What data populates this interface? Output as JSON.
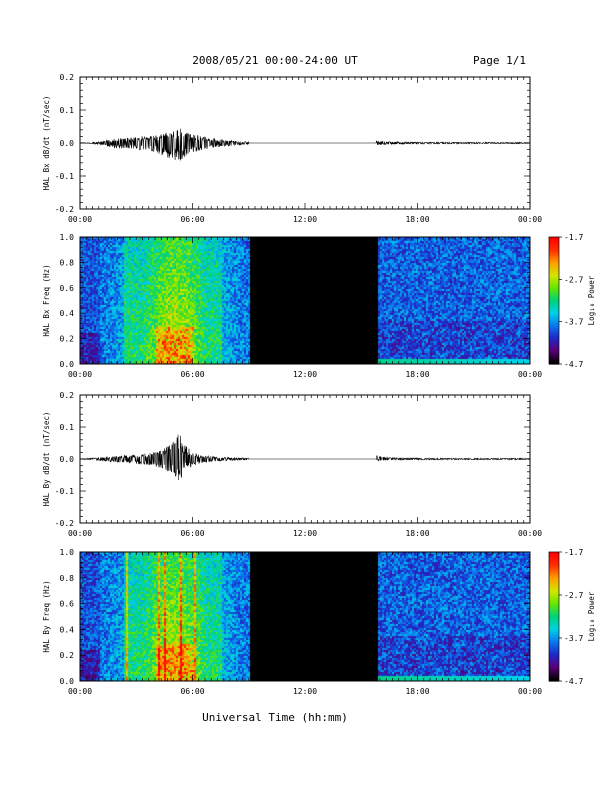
{
  "header": {
    "title": "2008/05/21  00:00-24:00 UT",
    "page": "Page 1/1"
  },
  "footer": {
    "xlabel": "Universal Time (hh:mm)"
  },
  "colors": {
    "spectrogram_scale": [
      "#000000",
      "#5a0078",
      "#1e28c8",
      "#0a78f0",
      "#00d2e6",
      "#00d278",
      "#64e600",
      "#d2e600",
      "#ffa000",
      "#ff3000",
      "#ff0000"
    ],
    "data_gap": "#000000",
    "trace": "#000000"
  },
  "chart_data": [
    {
      "type": "line",
      "panel": "bx-trace",
      "ylabel": "HAL Bx dB/dt (nT/sec)",
      "ylim": [
        -0.2,
        0.2
      ],
      "yticks": [
        "0.2",
        "0.1",
        "0.0",
        "-0.1",
        "-0.2"
      ],
      "ytick_values": [
        0.2,
        0.1,
        0.0,
        -0.1,
        -0.2
      ],
      "xlim_hours": [
        0,
        24
      ],
      "xticks": [
        "00:00",
        "06:00",
        "12:00",
        "18:00",
        "00:00"
      ],
      "xtick_hours": [
        0,
        6,
        12,
        18,
        24
      ],
      "data_gap_hours": [
        9.0,
        15.8
      ],
      "envelope": {
        "hours": [
          0,
          0.5,
          1.0,
          1.5,
          2.0,
          2.5,
          3.0,
          3.5,
          4.0,
          4.5,
          5.0,
          5.3,
          5.6,
          6.0,
          6.5,
          7.0,
          7.5,
          8.0,
          8.5,
          9.0,
          15.8,
          16.5,
          17.5,
          18.5,
          19.5,
          20.5,
          21.5,
          22.5,
          23.5,
          24.0
        ],
        "max": [
          0.001,
          0.001,
          0.004,
          0.01,
          0.014,
          0.016,
          0.018,
          0.022,
          0.025,
          0.03,
          0.042,
          0.048,
          0.035,
          0.026,
          0.02,
          0.015,
          0.011,
          0.008,
          0.005,
          0.004,
          0.007,
          0.004,
          0.003,
          0.003,
          0.002,
          0.002,
          0.002,
          0.002,
          0.002,
          0.001
        ],
        "min": [
          -0.001,
          -0.001,
          -0.005,
          -0.012,
          -0.016,
          -0.018,
          -0.02,
          -0.024,
          -0.028,
          -0.04,
          -0.055,
          -0.07,
          -0.04,
          -0.028,
          -0.022,
          -0.016,
          -0.012,
          -0.009,
          -0.006,
          -0.004,
          -0.006,
          -0.004,
          -0.003,
          -0.003,
          -0.002,
          -0.002,
          -0.002,
          -0.002,
          -0.002,
          -0.001
        ]
      }
    },
    {
      "type": "heatmap",
      "panel": "bx-spectrogram",
      "ylabel": "HAL Bx Freq (Hz)",
      "ylim": [
        0.0,
        1.0
      ],
      "yticks": [
        "1.0",
        "0.8",
        "0.6",
        "0.4",
        "0.2",
        "0.0"
      ],
      "ytick_values": [
        1.0,
        0.8,
        0.6,
        0.4,
        0.2,
        0.0
      ],
      "xlim_hours": [
        0,
        24
      ],
      "xticks": [
        "00:00",
        "06:00",
        "12:00",
        "18:00",
        "00:00"
      ],
      "xtick_hours": [
        0,
        6,
        12,
        18,
        24
      ],
      "data_gap_hours": [
        9.0,
        15.8
      ],
      "colorbar_label": "Log₁₀ Power",
      "colorbar_range": [
        -4.7,
        -1.7
      ],
      "colorbar_ticks": [
        "-1.7",
        "-2.7",
        "-3.7",
        "-4.7"
      ],
      "colorbar_tick_values": [
        -1.7,
        -2.7,
        -3.7,
        -4.7
      ],
      "activity_peak_hours": 5.0
    },
    {
      "type": "line",
      "panel": "by-trace",
      "ylabel": "HAL By dB/dt (nT/sec)",
      "ylim": [
        -0.2,
        0.2
      ],
      "yticks": [
        "0.2",
        "0.1",
        "0.0",
        "-0.1",
        "-0.2"
      ],
      "ytick_values": [
        0.2,
        0.1,
        0.0,
        -0.1,
        -0.2
      ],
      "xlim_hours": [
        0,
        24
      ],
      "xticks": [
        "00:00",
        "06:00",
        "12:00",
        "18:00",
        "00:00"
      ],
      "xtick_hours": [
        0,
        6,
        12,
        18,
        24
      ],
      "data_gap_hours": [
        9.0,
        15.8
      ],
      "envelope": {
        "hours": [
          0,
          0.5,
          1.0,
          1.5,
          2.0,
          2.5,
          3.0,
          3.5,
          4.0,
          4.5,
          5.0,
          5.3,
          5.6,
          6.0,
          6.5,
          7.0,
          7.5,
          8.0,
          8.5,
          9.0,
          15.8,
          16.5,
          17.5,
          18.5,
          19.5,
          20.5,
          21.5,
          22.5,
          23.5,
          24.0
        ],
        "max": [
          0.001,
          0.002,
          0.005,
          0.008,
          0.01,
          0.012,
          0.014,
          0.018,
          0.022,
          0.035,
          0.06,
          0.09,
          0.045,
          0.022,
          0.012,
          0.009,
          0.007,
          0.005,
          0.004,
          0.003,
          0.012,
          0.004,
          0.003,
          0.003,
          0.002,
          0.002,
          0.002,
          0.002,
          0.002,
          0.001
        ],
        "min": [
          -0.001,
          -0.002,
          -0.005,
          -0.009,
          -0.011,
          -0.013,
          -0.015,
          -0.019,
          -0.024,
          -0.038,
          -0.055,
          -0.07,
          -0.04,
          -0.022,
          -0.013,
          -0.009,
          -0.007,
          -0.005,
          -0.004,
          -0.003,
          -0.006,
          -0.004,
          -0.003,
          -0.003,
          -0.002,
          -0.002,
          -0.002,
          -0.002,
          -0.002,
          -0.001
        ]
      }
    },
    {
      "type": "heatmap",
      "panel": "by-spectrogram",
      "ylabel": "HAL By Freq (Hz)",
      "ylim": [
        0.0,
        1.0
      ],
      "yticks": [
        "1.0",
        "0.8",
        "0.6",
        "0.4",
        "0.2",
        "0.0"
      ],
      "ytick_values": [
        1.0,
        0.8,
        0.6,
        0.4,
        0.2,
        0.0
      ],
      "xlim_hours": [
        0,
        24
      ],
      "xticks": [
        "00:00",
        "06:00",
        "12:00",
        "18:00",
        "00:00"
      ],
      "xtick_hours": [
        0,
        6,
        12,
        18,
        24
      ],
      "data_gap_hours": [
        9.0,
        15.8
      ],
      "colorbar_label": "Log₁₀ Power",
      "colorbar_range": [
        -4.7,
        -1.7
      ],
      "colorbar_ticks": [
        "-1.7",
        "-2.7",
        "-3.7",
        "-4.7"
      ],
      "colorbar_tick_values": [
        -1.7,
        -2.7,
        -3.7,
        -4.7
      ],
      "activity_peak_hours": 5.0
    }
  ]
}
